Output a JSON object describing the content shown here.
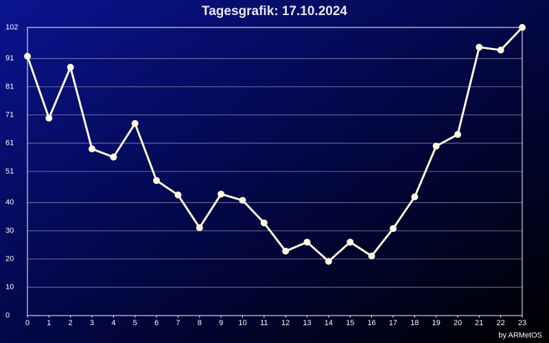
{
  "chart_data": {
    "type": "line",
    "title": "Tagesgrafik: 17.10.2024",
    "credit": "by ARMetOS",
    "x": [
      0,
      1,
      2,
      3,
      4,
      5,
      6,
      7,
      8,
      9,
      10,
      11,
      12,
      13,
      14,
      15,
      16,
      17,
      18,
      19,
      20,
      21,
      22,
      23
    ],
    "series": [
      {
        "color": "#fffbe0",
        "values": [
          91.8,
          69.9,
          87.9,
          59.0,
          56.1,
          68.0,
          47.8,
          42.7,
          31.1,
          43.0,
          40.8,
          32.8,
          22.8,
          26.0,
          19.2,
          26.0,
          21.1,
          30.8,
          42.0,
          60.0,
          64.1,
          95.0,
          94.0,
          102
        ]
      }
    ],
    "xlim": [
      0,
      23
    ],
    "xticks": [
      0,
      1,
      2,
      3,
      4,
      5,
      6,
      7,
      8,
      9,
      10,
      11,
      12,
      13,
      14,
      15,
      16,
      17,
      18,
      19,
      20,
      21,
      22,
      23
    ],
    "ylim": [
      0,
      102
    ],
    "yticks": [
      0,
      10,
      20,
      30,
      40,
      51,
      61,
      71,
      81,
      91,
      102
    ],
    "grid": true
  }
}
